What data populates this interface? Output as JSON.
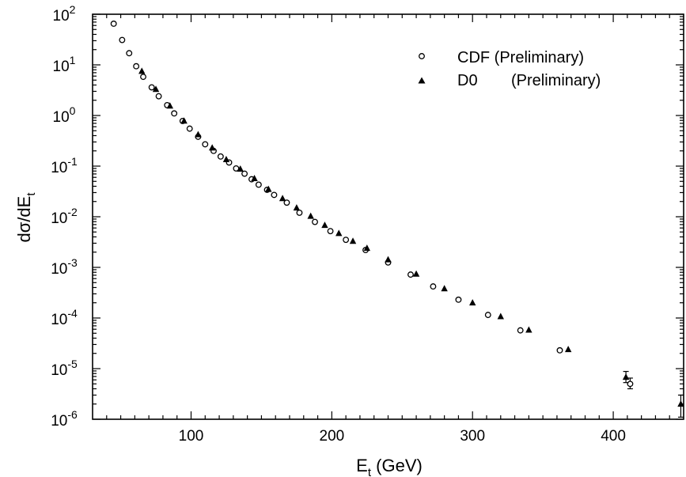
{
  "chart_data": {
    "type": "scatter",
    "title": "",
    "xlabel": {
      "main": "E",
      "sub": "t",
      "suffix": " (GeV)"
    },
    "ylabel": {
      "main": "dσ/dE",
      "sub": "t"
    },
    "x_scale": "linear",
    "y_scale": "log",
    "xlim": [
      30,
      450
    ],
    "ylim": [
      1e-06,
      100
    ],
    "x_ticks": [
      {
        "value": 100,
        "label": "100"
      },
      {
        "value": 200,
        "label": "200"
      },
      {
        "value": 300,
        "label": "300"
      },
      {
        "value": 400,
        "label": "400"
      }
    ],
    "y_ticks": [
      {
        "value": 100,
        "base": "10",
        "exp": "2"
      },
      {
        "value": 10,
        "base": "10",
        "exp": "1"
      },
      {
        "value": 1,
        "base": "10",
        "exp": "0"
      },
      {
        "value": 0.1,
        "base": "10",
        "exp": "-1"
      },
      {
        "value": 0.01,
        "base": "10",
        "exp": "-2"
      },
      {
        "value": 0.001,
        "base": "10",
        "exp": "-3"
      },
      {
        "value": 0.0001,
        "base": "10",
        "exp": "-4"
      },
      {
        "value": 1e-05,
        "base": "10",
        "exp": "-5"
      },
      {
        "value": 1e-06,
        "base": "10",
        "exp": "-6"
      }
    ],
    "grid": false,
    "legend_position": "top-right",
    "series": [
      {
        "name": "CDF (Preliminary)",
        "marker": "open-circle",
        "points": [
          {
            "x": 45,
            "y": 65
          },
          {
            "x": 51,
            "y": 31
          },
          {
            "x": 56,
            "y": 17
          },
          {
            "x": 61,
            "y": 9.4
          },
          {
            "x": 66,
            "y": 5.8
          },
          {
            "x": 72,
            "y": 3.6
          },
          {
            "x": 77,
            "y": 2.4
          },
          {
            "x": 83,
            "y": 1.6
          },
          {
            "x": 88,
            "y": 1.1
          },
          {
            "x": 94,
            "y": 0.78
          },
          {
            "x": 99,
            "y": 0.55
          },
          {
            "x": 105,
            "y": 0.38
          },
          {
            "x": 110,
            "y": 0.27
          },
          {
            "x": 116,
            "y": 0.2
          },
          {
            "x": 121,
            "y": 0.155
          },
          {
            "x": 127,
            "y": 0.118
          },
          {
            "x": 132,
            "y": 0.09
          },
          {
            "x": 138,
            "y": 0.071
          },
          {
            "x": 143,
            "y": 0.055
          },
          {
            "x": 148,
            "y": 0.043
          },
          {
            "x": 154,
            "y": 0.034
          },
          {
            "x": 159,
            "y": 0.027
          },
          {
            "x": 168,
            "y": 0.019
          },
          {
            "x": 177,
            "y": 0.012
          },
          {
            "x": 188,
            "y": 0.0079
          },
          {
            "x": 199,
            "y": 0.0052
          },
          {
            "x": 210,
            "y": 0.0035
          },
          {
            "x": 224,
            "y": 0.0022
          },
          {
            "x": 240,
            "y": 0.00125
          },
          {
            "x": 256,
            "y": 0.00072
          },
          {
            "x": 272,
            "y": 0.00042
          },
          {
            "x": 290,
            "y": 0.00023
          },
          {
            "x": 311,
            "y": 0.000115
          },
          {
            "x": 334,
            "y": 5.7e-05
          },
          {
            "x": 362,
            "y": 2.3e-05
          },
          {
            "x": 412,
            "y": 5e-06,
            "err_up": 1.5e-06,
            "err_down": 1e-06
          }
        ]
      },
      {
        "name": "D0",
        "name_suffix": "(Preliminary)",
        "marker": "filled-triangle",
        "points": [
          {
            "x": 65,
            "y": 7.5
          },
          {
            "x": 75,
            "y": 3.3
          },
          {
            "x": 85,
            "y": 1.55
          },
          {
            "x": 95,
            "y": 0.78
          },
          {
            "x": 105,
            "y": 0.42
          },
          {
            "x": 115,
            "y": 0.23
          },
          {
            "x": 125,
            "y": 0.135
          },
          {
            "x": 135,
            "y": 0.088
          },
          {
            "x": 145,
            "y": 0.057
          },
          {
            "x": 155,
            "y": 0.035
          },
          {
            "x": 165,
            "y": 0.023
          },
          {
            "x": 175,
            "y": 0.015
          },
          {
            "x": 185,
            "y": 0.0103
          },
          {
            "x": 195,
            "y": 0.0068
          },
          {
            "x": 205,
            "y": 0.0047
          },
          {
            "x": 215,
            "y": 0.0033
          },
          {
            "x": 225,
            "y": 0.0024
          },
          {
            "x": 240,
            "y": 0.00142
          },
          {
            "x": 260,
            "y": 0.00074
          },
          {
            "x": 280,
            "y": 0.00038
          },
          {
            "x": 300,
            "y": 0.0002
          },
          {
            "x": 320,
            "y": 0.000107
          },
          {
            "x": 340,
            "y": 5.8e-05
          },
          {
            "x": 368,
            "y": 2.4e-05
          },
          {
            "x": 409,
            "y": 6.8e-06,
            "err_up": 2e-06,
            "err_down": 1.5e-06
          },
          {
            "x": 448,
            "y": 2e-06,
            "err_up": 1e-06,
            "err_down": 9e-07
          }
        ]
      }
    ]
  }
}
